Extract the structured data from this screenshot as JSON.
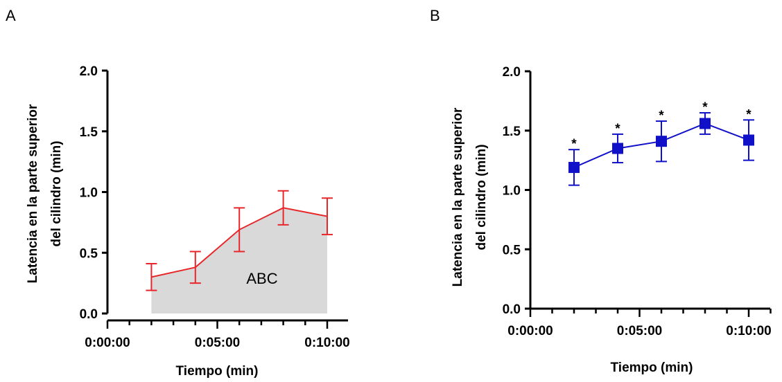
{
  "chart_data": [
    {
      "panel": "A",
      "type": "line",
      "x_tick_labels": [
        "0:00:00",
        "0:05:00",
        "0:10:00"
      ],
      "xlim": [
        0,
        10
      ],
      "ylim": [
        0,
        2
      ],
      "y_ticks": [
        "0.0",
        "0.5",
        "1.0",
        "1.5",
        "2.0"
      ],
      "xlabel": "Tiempo (min)",
      "ylabel_line1": "Latencia en la parte superior",
      "ylabel_line2": "del cilindro (min)",
      "series": [
        {
          "x": [
            2,
            4,
            6,
            8,
            10
          ],
          "y": [
            0.3,
            0.38,
            0.69,
            0.87,
            0.8
          ],
          "error": [
            0.11,
            0.13,
            0.18,
            0.14,
            0.15
          ],
          "color": "#e8262a"
        }
      ],
      "area_fill_color": "#d9d9d9",
      "area_label": "ABC"
    },
    {
      "panel": "B",
      "type": "line",
      "x_tick_labels": [
        "0:00:00",
        "0:05:00",
        "0:10:00"
      ],
      "xlim": [
        0,
        10
      ],
      "ylim": [
        0,
        2
      ],
      "y_ticks": [
        "0.0",
        "0.5",
        "1.0",
        "1.5",
        "2.0"
      ],
      "xlabel": "Tiempo (min)",
      "ylabel_line1": "Latencia en la parte superior",
      "ylabel_line2": "del cilindro (min)",
      "series": [
        {
          "x": [
            2,
            4,
            6,
            8,
            10
          ],
          "y": [
            1.19,
            1.35,
            1.41,
            1.56,
            1.42
          ],
          "error": [
            0.15,
            0.12,
            0.17,
            0.09,
            0.17
          ],
          "significance": [
            "*",
            "*",
            "*",
            "*",
            "*"
          ],
          "color": "#1010c8",
          "marker": "square"
        }
      ]
    }
  ]
}
